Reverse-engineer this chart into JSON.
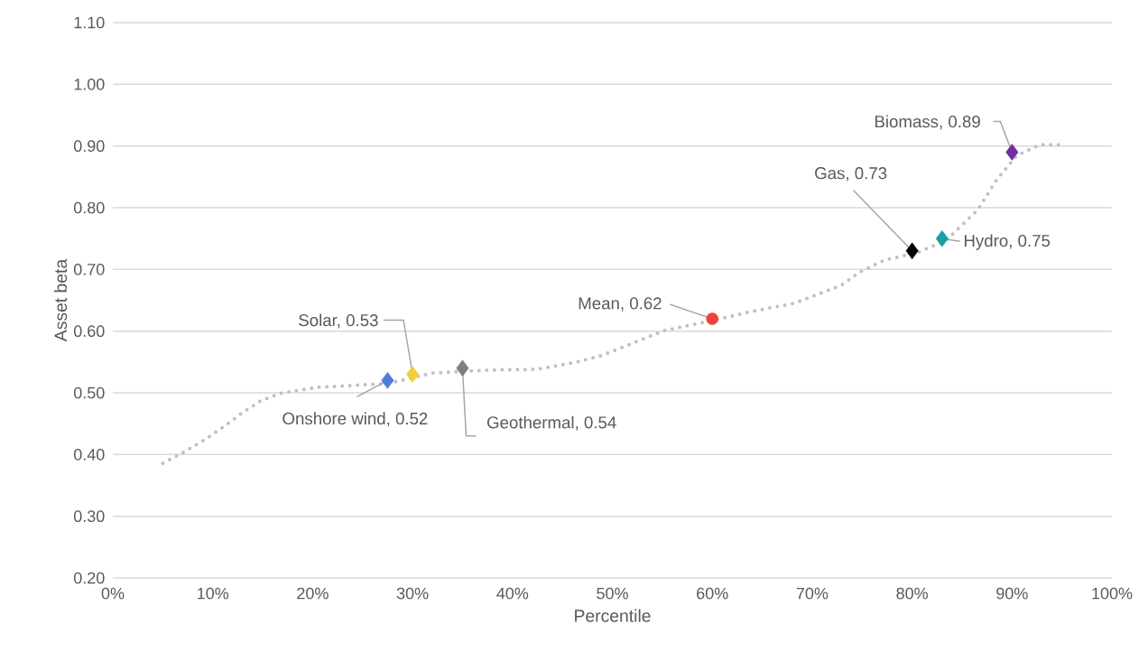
{
  "chart_data": {
    "type": "scatter",
    "xlabel": "Percentile",
    "ylabel": "Asset beta",
    "grid": "y",
    "xlim": [
      0,
      100
    ],
    "ylim": [
      0.2,
      1.1
    ],
    "xticks": [
      {
        "value": 0,
        "label": "0%"
      },
      {
        "value": 10,
        "label": "10%"
      },
      {
        "value": 20,
        "label": "20%"
      },
      {
        "value": 30,
        "label": "30%"
      },
      {
        "value": 40,
        "label": "40%"
      },
      {
        "value": 50,
        "label": "50%"
      },
      {
        "value": 60,
        "label": "60%"
      },
      {
        "value": 70,
        "label": "70%"
      },
      {
        "value": 80,
        "label": "80%"
      },
      {
        "value": 90,
        "label": "90%"
      },
      {
        "value": 100,
        "label": "100%"
      }
    ],
    "yticks": [
      {
        "value": 0.2,
        "label": "0.20"
      },
      {
        "value": 0.3,
        "label": "0.30"
      },
      {
        "value": 0.4,
        "label": "0.40"
      },
      {
        "value": 0.5,
        "label": "0.50"
      },
      {
        "value": 0.6,
        "label": "0.60"
      },
      {
        "value": 0.7,
        "label": "0.70"
      },
      {
        "value": 0.8,
        "label": "0.80"
      },
      {
        "value": 0.9,
        "label": "0.90"
      },
      {
        "value": 1.0,
        "label": "1.00"
      },
      {
        "value": 1.1,
        "label": "1.10"
      }
    ],
    "series": [
      {
        "type": "line",
        "color": "#c0c0c0",
        "marker": "none",
        "line_style": "dotted",
        "x": [
          5,
          7,
          9.2,
          11,
          13,
          14.9,
          17,
          20.6,
          24,
          27.5,
          32,
          37.8,
          42.4,
          46.8,
          49,
          52,
          55,
          57,
          60,
          64,
          68.2,
          72.9,
          74.7,
          77.2,
          80.5,
          83.4,
          86.6,
          88.4,
          90.5,
          92.8,
          95.3
        ],
        "values": [
          0.386,
          0.403,
          0.424,
          0.444,
          0.468,
          0.488,
          0.5,
          0.509,
          0.512,
          0.515,
          0.532,
          0.537,
          0.538,
          0.551,
          0.561,
          0.58,
          0.6,
          0.607,
          0.617,
          0.632,
          0.645,
          0.674,
          0.695,
          0.715,
          0.727,
          0.747,
          0.797,
          0.844,
          0.885,
          0.902,
          0.902
        ]
      },
      {
        "color": "#4a7fdc",
        "marker": "diamond",
        "x": [
          27.5
        ],
        "values": [
          0.52
        ]
      },
      {
        "color": "#f2cd3c",
        "marker": "diamond",
        "x": [
          30
        ],
        "values": [
          0.53
        ]
      },
      {
        "color": "#7f7f7f",
        "marker": "diamond",
        "x": [
          35
        ],
        "values": [
          0.54
        ]
      },
      {
        "color": "#f0443a",
        "marker": "circle",
        "x": [
          60
        ],
        "values": [
          0.62
        ]
      },
      {
        "color": "#000000",
        "marker": "diamond",
        "x": [
          80
        ],
        "values": [
          0.73
        ]
      },
      {
        "color": "#1a9ea6",
        "marker": "diamond",
        "x": [
          83
        ],
        "values": [
          0.75
        ]
      },
      {
        "color": "#7030a0",
        "marker": "diamond",
        "x": [
          90
        ],
        "values": [
          0.89
        ]
      }
    ],
    "annotations": [
      {
        "text": "Onshore wind,  0.52",
        "x": 27.5,
        "y": 0.52
      },
      {
        "text": "Solar,  0.53",
        "x": 30,
        "y": 0.53
      },
      {
        "text": "Geothermal,  0.54",
        "x": 35,
        "y": 0.54
      },
      {
        "text": "Mean,  0.62",
        "x": 60,
        "y": 0.62
      },
      {
        "text": "Gas,  0.73",
        "x": 80,
        "y": 0.73
      },
      {
        "text": "Hydro,  0.75",
        "x": 83,
        "y": 0.75
      },
      {
        "text": "Biomass,  0.89",
        "x": 90,
        "y": 0.89
      }
    ]
  }
}
